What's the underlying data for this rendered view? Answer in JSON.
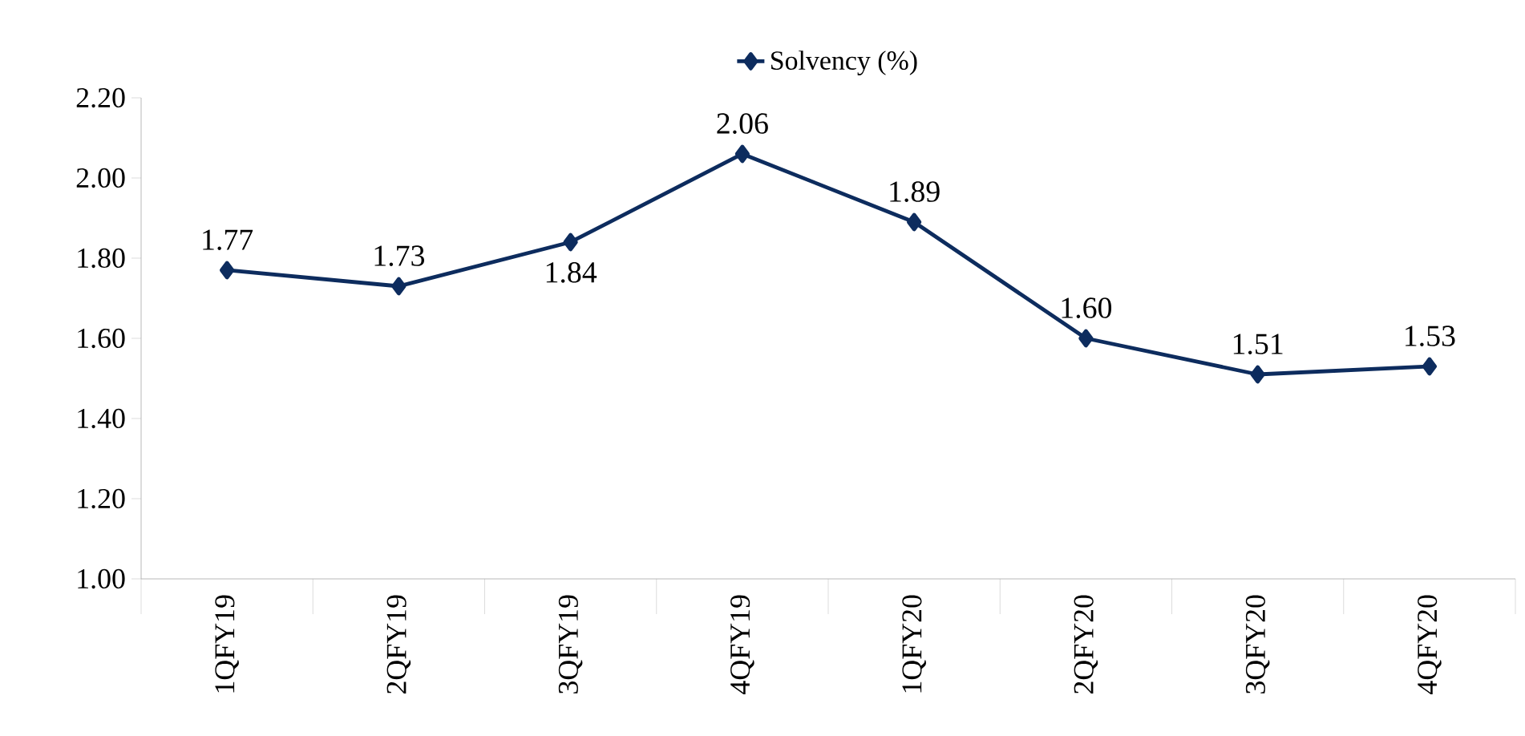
{
  "chart_data": {
    "type": "line",
    "categories": [
      "1QFY19",
      "2QFY19",
      "3QFY19",
      "4QFY19",
      "1QFY20",
      "2QFY20",
      "3QFY20",
      "4QFY20"
    ],
    "series": [
      {
        "name": "Solvency (%)",
        "color": "#0d2c5e",
        "values": [
          1.77,
          1.73,
          1.84,
          2.06,
          1.89,
          1.6,
          1.51,
          1.53
        ],
        "value_labels": [
          "1.77",
          "1.73",
          "1.84",
          "2.06",
          "1.89",
          "1.60",
          "1.51",
          "1.53"
        ]
      }
    ],
    "ylim": [
      1.0,
      2.2
    ],
    "yticks": [
      {
        "value": 1.0,
        "label": "1.00"
      },
      {
        "value": 1.2,
        "label": "1.20"
      },
      {
        "value": 1.4,
        "label": "1.40"
      },
      {
        "value": 1.6,
        "label": "1.60"
      },
      {
        "value": 1.8,
        "label": "1.80"
      },
      {
        "value": 2.0,
        "label": "2.00"
      },
      {
        "value": 2.2,
        "label": "2.20"
      }
    ],
    "grid": false,
    "legend": "top",
    "marker": "diamond",
    "line_style": "solid"
  }
}
